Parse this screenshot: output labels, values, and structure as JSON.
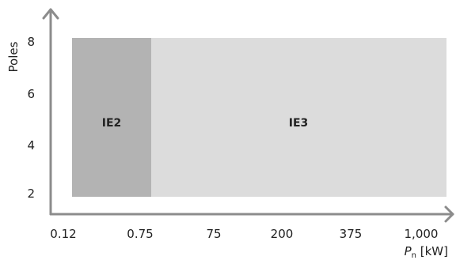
{
  "chart_data": {
    "type": "bar",
    "title": "",
    "xlabel_prefix": "P",
    "xlabel_subscript": "n",
    "xlabel_suffix": " [kW]",
    "ylabel": "Poles",
    "x_ticks": [
      "0.12",
      "0.75",
      "75",
      "200",
      "375",
      "1,000"
    ],
    "y_ticks": [
      "8",
      "6",
      "4",
      "2"
    ],
    "regions": [
      {
        "label": "IE2",
        "x_from": "0.12",
        "x_to": "0.75",
        "y_from": 2,
        "y_to": 8,
        "color": "#b3b3b3"
      },
      {
        "label": "IE3",
        "x_from": "0.75",
        "x_to": "1,000",
        "y_from": 2,
        "y_to": 8,
        "color": "#dcdcdc"
      }
    ],
    "ylim": [
      2,
      8
    ],
    "grid": false,
    "axis_color": "#8c8c8c"
  }
}
